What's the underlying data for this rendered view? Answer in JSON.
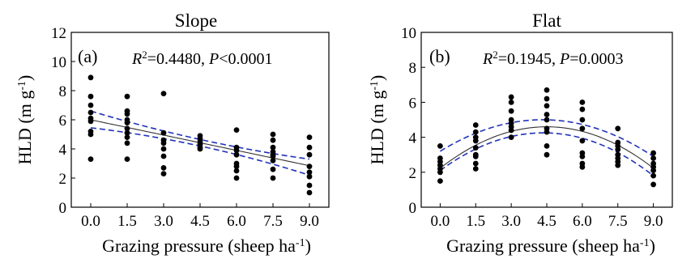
{
  "chart_data": [
    {
      "type": "scatter",
      "panel_label": "(a)",
      "title": "Slope",
      "stats": {
        "r2_label": "R",
        "r2_exp": "2",
        "r2_value": "=0.4480, ",
        "p_label": "P",
        "p_value": "<0.0001"
      },
      "xlabel": {
        "main": "Grazing pressure (sheep ha",
        "exp": "-1",
        "close": ")"
      },
      "ylabel": {
        "main": "HLD (m g",
        "exp": "-1",
        "close": ")"
      },
      "xlim": [
        -0.8,
        9.8
      ],
      "ylim": [
        0,
        12
      ],
      "x_ticks": [
        "0.0",
        "1.5",
        "3.0",
        "4.5",
        "6.0",
        "7.5",
        "9.0"
      ],
      "y_ticks": [
        "0",
        "2",
        "4",
        "6",
        "8",
        "10",
        "12"
      ],
      "points": [
        [
          0,
          8.9
        ],
        [
          0,
          7.6
        ],
        [
          0,
          7.0
        ],
        [
          0,
          6.5
        ],
        [
          0,
          6.1
        ],
        [
          0,
          5.9
        ],
        [
          0,
          5.2
        ],
        [
          0,
          5.0
        ],
        [
          0,
          3.3
        ],
        [
          1.5,
          7.6
        ],
        [
          1.5,
          6.6
        ],
        [
          1.5,
          6.4
        ],
        [
          1.5,
          6.0
        ],
        [
          1.5,
          5.8
        ],
        [
          1.5,
          5.4
        ],
        [
          1.5,
          5.1
        ],
        [
          1.5,
          4.8
        ],
        [
          1.5,
          4.4
        ],
        [
          1.5,
          3.3
        ],
        [
          3.0,
          7.8
        ],
        [
          3.0,
          5.1
        ],
        [
          3.0,
          4.6
        ],
        [
          3.0,
          4.4
        ],
        [
          3.0,
          4.0
        ],
        [
          3.0,
          3.5
        ],
        [
          3.0,
          2.7
        ],
        [
          3.0,
          2.3
        ],
        [
          4.5,
          4.9
        ],
        [
          4.5,
          4.7
        ],
        [
          4.5,
          4.5
        ],
        [
          4.5,
          4.3
        ],
        [
          4.5,
          4.1
        ],
        [
          4.5,
          4.0
        ],
        [
          6.0,
          5.3
        ],
        [
          6.0,
          4.1
        ],
        [
          6.0,
          3.9
        ],
        [
          6.0,
          3.6
        ],
        [
          6.0,
          3.0
        ],
        [
          6.0,
          2.8
        ],
        [
          6.0,
          2.5
        ],
        [
          6.0,
          2.0
        ],
        [
          7.5,
          5.0
        ],
        [
          7.5,
          4.6
        ],
        [
          7.5,
          4.1
        ],
        [
          7.5,
          3.8
        ],
        [
          7.5,
          3.6
        ],
        [
          7.5,
          3.5
        ],
        [
          7.5,
          3.2
        ],
        [
          7.5,
          2.6
        ],
        [
          7.5,
          2.0
        ],
        [
          9.0,
          4.8
        ],
        [
          9.0,
          4.1
        ],
        [
          9.0,
          3.6
        ],
        [
          9.0,
          2.8
        ],
        [
          9.0,
          2.4
        ],
        [
          9.0,
          2.1
        ],
        [
          9.0,
          1.5
        ],
        [
          9.0,
          1.0
        ]
      ],
      "fit": {
        "kind": "linear",
        "intercept": 6.0,
        "slope": -0.35,
        "xrange": [
          0,
          9.0
        ]
      },
      "ci": {
        "upper": [
          [
            0,
            6.6
          ],
          [
            4.5,
            4.65
          ],
          [
            9.0,
            3.3
          ]
        ],
        "lower": [
          [
            0,
            5.45
          ],
          [
            4.5,
            4.2
          ],
          [
            9.0,
            2.2
          ]
        ]
      }
    },
    {
      "type": "scatter",
      "panel_label": "(b)",
      "title": "Flat",
      "stats": {
        "r2_label": "R",
        "r2_exp": "2",
        "r2_value": "=0.1945, ",
        "p_label": "P",
        "p_value": "=0.0003"
      },
      "xlabel": {
        "main": "Grazing pressure (sheep ha",
        "exp": "-1",
        "close": ")"
      },
      "ylabel": {
        "main": "HLD (m g",
        "exp": "-1",
        "close": ")"
      },
      "xlim": [
        -0.8,
        9.8
      ],
      "ylim": [
        0,
        10
      ],
      "x_ticks": [
        "0.0",
        "1.5",
        "3.0",
        "4.5",
        "6.0",
        "7.5",
        "9.0"
      ],
      "y_ticks": [
        "0",
        "2",
        "4",
        "6",
        "8",
        "10"
      ],
      "points": [
        [
          0,
          3.5
        ],
        [
          0,
          2.8
        ],
        [
          0,
          2.6
        ],
        [
          0,
          2.4
        ],
        [
          0,
          2.2
        ],
        [
          0,
          2.0
        ],
        [
          0,
          1.5
        ],
        [
          1.5,
          4.7
        ],
        [
          1.5,
          4.3
        ],
        [
          1.5,
          4.0
        ],
        [
          1.5,
          3.8
        ],
        [
          1.5,
          3.4
        ],
        [
          1.5,
          3.0
        ],
        [
          1.5,
          2.9
        ],
        [
          1.5,
          2.5
        ],
        [
          1.5,
          2.2
        ],
        [
          3.0,
          6.3
        ],
        [
          3.0,
          6.0
        ],
        [
          3.0,
          5.5
        ],
        [
          3.0,
          5.0
        ],
        [
          3.0,
          4.8
        ],
        [
          3.0,
          4.6
        ],
        [
          3.0,
          4.4
        ],
        [
          3.0,
          4.0
        ],
        [
          4.5,
          6.7
        ],
        [
          4.5,
          6.2
        ],
        [
          4.5,
          5.8
        ],
        [
          4.5,
          5.3
        ],
        [
          4.5,
          5.0
        ],
        [
          4.5,
          4.5
        ],
        [
          4.5,
          4.3
        ],
        [
          4.5,
          3.5
        ],
        [
          4.5,
          3.0
        ],
        [
          6.0,
          6.0
        ],
        [
          6.0,
          5.6
        ],
        [
          6.0,
          5.0
        ],
        [
          6.0,
          4.5
        ],
        [
          6.0,
          3.8
        ],
        [
          6.0,
          3.1
        ],
        [
          6.0,
          2.9
        ],
        [
          6.0,
          2.5
        ],
        [
          6.0,
          2.3
        ],
        [
          7.5,
          4.5
        ],
        [
          7.5,
          3.7
        ],
        [
          7.5,
          3.5
        ],
        [
          7.5,
          3.3
        ],
        [
          7.5,
          3.0
        ],
        [
          7.5,
          2.8
        ],
        [
          7.5,
          2.6
        ],
        [
          7.5,
          2.4
        ],
        [
          9.0,
          3.1
        ],
        [
          9.0,
          2.8
        ],
        [
          9.0,
          2.5
        ],
        [
          9.0,
          2.3
        ],
        [
          9.0,
          2.1
        ],
        [
          9.0,
          1.8
        ],
        [
          9.0,
          1.3
        ]
      ],
      "fit": {
        "kind": "quadratic",
        "vertex_x": 4.5,
        "vertex_y": 4.6,
        "a": -0.117,
        "xrange": [
          0,
          9.0
        ]
      },
      "ci": {
        "upper": [
          [
            0,
            3.2
          ],
          [
            4.5,
            5.0
          ],
          [
            9.0,
            2.9
          ]
        ],
        "lower": [
          [
            0,
            2.1
          ],
          [
            4.5,
            4.25
          ],
          [
            9.0,
            1.8
          ]
        ]
      }
    }
  ],
  "colors": {
    "points": "#000000",
    "fit": "#333333",
    "ci": "#2233bb",
    "axis": "#000000"
  }
}
